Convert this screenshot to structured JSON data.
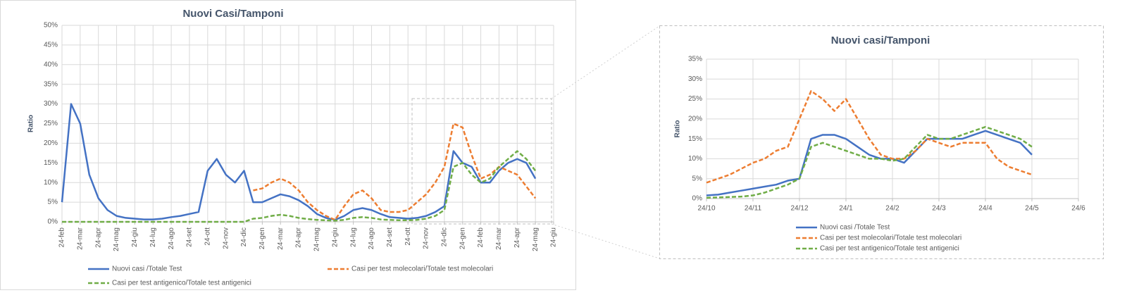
{
  "chart_data": [
    {
      "type": "line",
      "title": "Nuovi Casi/Tamponi",
      "ylabel": "Ratio",
      "grid": true,
      "legend": "bottom",
      "categories": [
        "24-feb",
        null,
        "24-mar",
        null,
        "24-apr",
        null,
        "24-mag",
        null,
        "24-giu",
        null,
        "24-lug",
        null,
        "24-ago",
        null,
        "24-set",
        null,
        "24-ott",
        null,
        "24-nov",
        null,
        "24-dic",
        null,
        "24-gen",
        null,
        "24-mar",
        null,
        "24-apr",
        null,
        "24-mag",
        null,
        "24-giu",
        null,
        "24-lug",
        null,
        "24-ago",
        null,
        "24-set",
        null,
        "24-ott",
        null,
        "24-nov",
        null,
        "24-dic",
        null,
        "24-gen",
        null,
        "24-feb",
        null,
        "24-mar",
        null,
        "24-apr",
        null,
        "24-mag",
        null,
        "24-giu"
      ],
      "ylim": [
        0,
        50
      ],
      "yticks": [
        {
          "value": 0,
          "label": "0%"
        },
        {
          "value": 5,
          "label": "5%"
        },
        {
          "value": 10,
          "label": "10%"
        },
        {
          "value": 15,
          "label": "15%"
        },
        {
          "value": 20,
          "label": "20%"
        },
        {
          "value": 25,
          "label": "25%"
        },
        {
          "value": 30,
          "label": "30%"
        },
        {
          "value": 35,
          "label": "35%"
        },
        {
          "value": 40,
          "label": "40%"
        },
        {
          "value": 45,
          "label": "45%"
        },
        {
          "value": 50,
          "label": "50%"
        }
      ],
      "series": [
        {
          "name": "Nuovi casi /Totale Test",
          "color": "#4472c4",
          "style": "solid",
          "values": [
            5,
            30,
            25,
            12,
            6,
            3,
            1.5,
            1,
            0.8,
            0.6,
            0.6,
            0.8,
            1.2,
            1.5,
            2,
            2.5,
            13,
            16,
            12,
            10,
            13,
            5,
            5,
            6,
            7,
            6.5,
            5.5,
            4,
            2,
            1,
            0.5,
            1.5,
            3,
            3.5,
            3,
            2,
            1.2,
            1,
            0.8,
            1,
            1.5,
            2.5,
            4,
            18,
            15,
            14,
            10,
            10,
            13,
            15,
            16,
            15,
            11,
            null,
            null
          ]
        },
        {
          "name": "Casi per test molecolari/Totale test molecolari",
          "color": "#ed7d31",
          "style": "dashed",
          "values": [
            null,
            null,
            null,
            null,
            null,
            null,
            null,
            null,
            null,
            null,
            null,
            null,
            null,
            null,
            null,
            null,
            null,
            null,
            null,
            null,
            null,
            8,
            8.5,
            10,
            11,
            10,
            8,
            5,
            3,
            1.5,
            0.5,
            4,
            7,
            8,
            6,
            3,
            2.5,
            2.5,
            3,
            5,
            7,
            10,
            14,
            25,
            24,
            17,
            11,
            12,
            14,
            13,
            12,
            9,
            6,
            null,
            null
          ]
        },
        {
          "name": "Casi per test antigenico/Totale test antigenici",
          "color": "#70ad47",
          "style": "dashed",
          "values": [
            0,
            0,
            0,
            0,
            0,
            0,
            0,
            0,
            0,
            0,
            0,
            0,
            0,
            0,
            0,
            0,
            0,
            0,
            0,
            0,
            0,
            0.8,
            1,
            1.5,
            1.8,
            1.5,
            1,
            0.7,
            0.5,
            0.4,
            0.3,
            0.5,
            1,
            1.2,
            1,
            0.6,
            0.5,
            0.4,
            0.4,
            0.5,
            0.8,
            1.5,
            3,
            14,
            15,
            12,
            10,
            11,
            14,
            16,
            18,
            16,
            13,
            null,
            null
          ]
        }
      ]
    },
    {
      "type": "line",
      "title": "Nuovi casi/Tamponi",
      "ylabel": "Ratio",
      "grid": true,
      "legend": "bottom",
      "categories": [
        "24/10",
        null,
        null,
        null,
        "24/11",
        null,
        null,
        null,
        "24/12",
        null,
        null,
        null,
        "24/1",
        null,
        null,
        null,
        "24/2",
        null,
        null,
        null,
        "24/3",
        null,
        null,
        null,
        "24/4",
        null,
        null,
        null,
        "24/5",
        null,
        null,
        null,
        "24/6"
      ],
      "ylim": [
        0,
        35
      ],
      "yticks": [
        {
          "value": 0,
          "label": "0%"
        },
        {
          "value": 5,
          "label": "5%"
        },
        {
          "value": 10,
          "label": "10%"
        },
        {
          "value": 15,
          "label": "15%"
        },
        {
          "value": 20,
          "label": "20%"
        },
        {
          "value": 25,
          "label": "25%"
        },
        {
          "value": 30,
          "label": "30%"
        },
        {
          "value": 35,
          "label": "35%"
        }
      ],
      "series": [
        {
          "name": "Nuovi casi /Totale Test",
          "color": "#4472c4",
          "style": "solid",
          "values": [
            0.8,
            1,
            1.5,
            2,
            2.5,
            3,
            3.5,
            4.5,
            5,
            15,
            16,
            16,
            15,
            13,
            11,
            10,
            10,
            9,
            12,
            15,
            15,
            15,
            15,
            16,
            17,
            16,
            15,
            14,
            11,
            null,
            null,
            null,
            null
          ]
        },
        {
          "name": "Casi per test molecolari/Totale test molecolari",
          "color": "#ed7d31",
          "style": "dashed",
          "values": [
            4,
            5,
            6,
            7.5,
            9,
            10,
            12,
            13,
            20,
            27,
            25,
            22,
            25,
            20,
            15,
            11,
            10,
            10,
            12,
            15,
            14,
            13,
            14,
            14,
            14,
            10,
            8,
            7,
            6,
            null,
            null,
            null,
            null
          ]
        },
        {
          "name": "Casi per test antigenico/Totale test antigenici",
          "color": "#70ad47",
          "style": "dashed",
          "values": [
            0.2,
            0.3,
            0.4,
            0.5,
            0.8,
            1.5,
            2.5,
            3.5,
            5,
            13,
            14,
            13,
            12,
            11,
            10,
            10,
            9.5,
            10,
            13,
            16,
            15,
            15,
            16,
            17,
            18,
            17,
            16,
            15,
            13,
            null,
            null,
            null,
            null
          ]
        }
      ]
    }
  ]
}
